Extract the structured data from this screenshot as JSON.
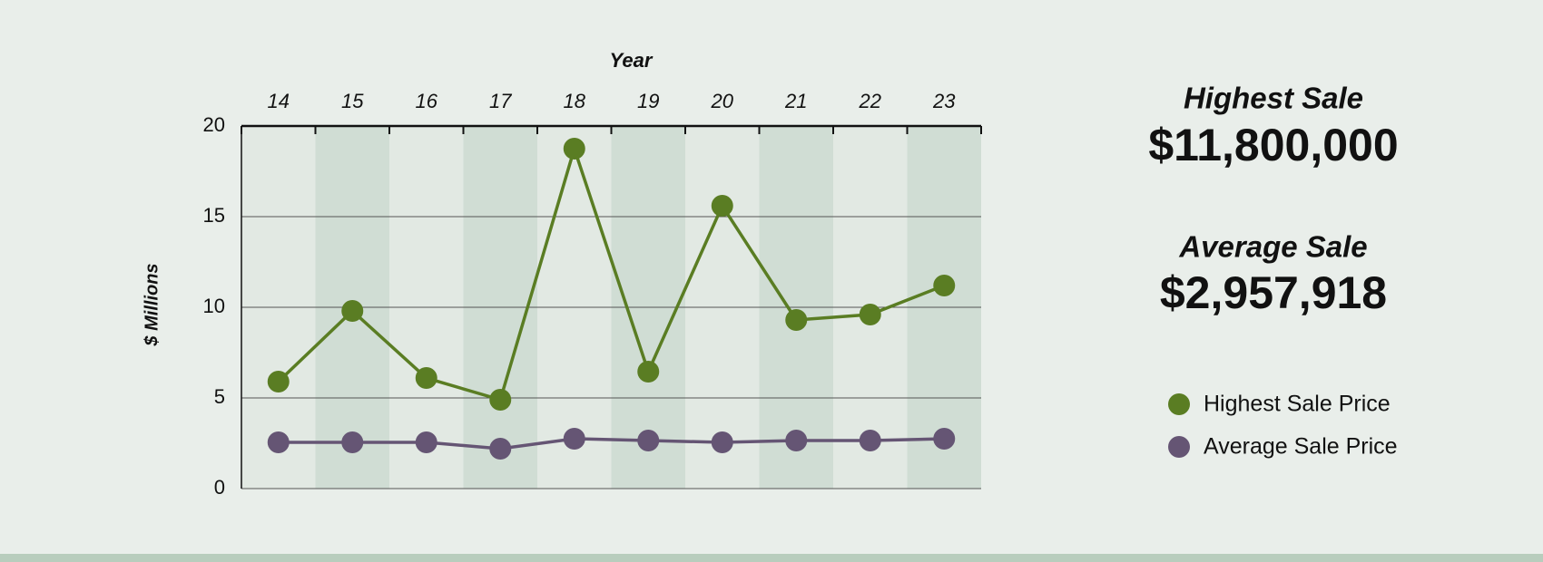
{
  "chart_data": {
    "type": "line",
    "x_label": "Year",
    "y_label": "$ Millions",
    "categories": [
      "14",
      "15",
      "16",
      "17",
      "18",
      "19",
      "20",
      "21",
      "22",
      "23"
    ],
    "series": [
      {
        "name": "Highest Sale Price",
        "color": "#5a7d23",
        "values": [
          5.9,
          9.8,
          6.1,
          4.9,
          18.75,
          6.45,
          15.6,
          9.3,
          9.6,
          11.2
        ]
      },
      {
        "name": "Average Sale Price",
        "color": "#655574",
        "values": [
          2.55,
          2.55,
          2.55,
          2.2,
          2.75,
          2.65,
          2.55,
          2.65,
          2.65,
          2.75
        ]
      }
    ],
    "ylim": [
      0,
      20
    ],
    "yticks": [
      0,
      5,
      10,
      15,
      20
    ],
    "grid": true
  },
  "summary": {
    "highest_title": "Highest Sale",
    "highest_value": "$11,800,000",
    "average_title": "Average Sale",
    "average_value": "$2,957,918"
  }
}
